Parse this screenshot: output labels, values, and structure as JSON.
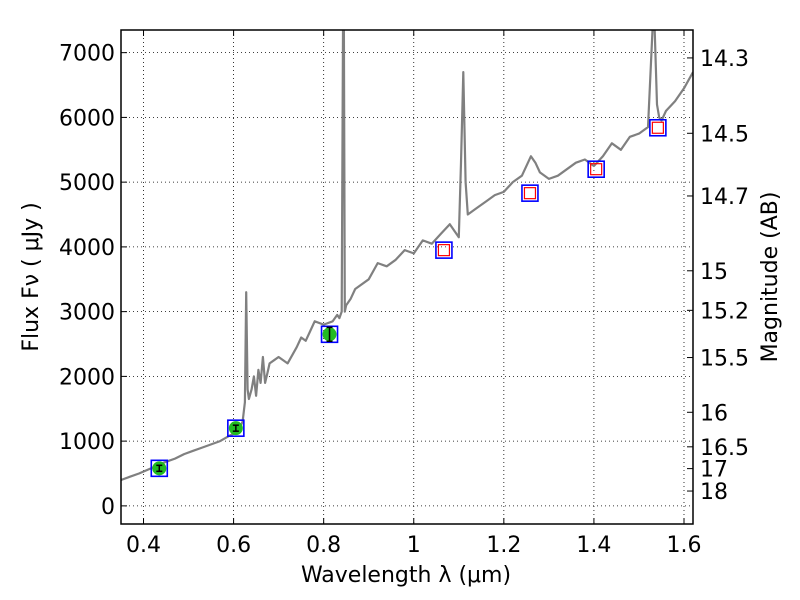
{
  "chart_data": {
    "type": "line",
    "title": "",
    "xlabel": "Wavelength  λ (μm)",
    "ylabel": "Flux  Fν  ( μJy )",
    "y2label": "Magnitude (AB)",
    "xlim": [
      0.35,
      1.62
    ],
    "ylim": [
      -280,
      7350
    ],
    "grid": true,
    "x_ticks": [
      0.4,
      0.6,
      0.8,
      1.0,
      1.2,
      1.4,
      1.6
    ],
    "x_tick_labels": [
      "0.4",
      "0.6",
      "0.8",
      "1",
      "1.2",
      "1.4",
      "1.6"
    ],
    "y_ticks": [
      0,
      1000,
      2000,
      3000,
      4000,
      5000,
      6000,
      7000
    ],
    "y_tick_labels": [
      "0",
      "1000",
      "2000",
      "3000",
      "4000",
      "5000",
      "6000",
      "7000"
    ],
    "mag_ticks": [
      14.3,
      14.5,
      14.7,
      15,
      15.2,
      15.5,
      16,
      16.5,
      17,
      18
    ],
    "mag_tick_labels": [
      "14.3",
      "14.5",
      "14.7",
      "15",
      "15.2",
      "15.5",
      "16",
      "16.5",
      "17",
      "18"
    ],
    "colors": {
      "spectrum": "#808080",
      "model_box": "#0000ff",
      "obs_point": "#22bb22",
      "nir_marker": "#ff0000"
    },
    "series": [
      {
        "name": "spectrum",
        "kind": "line",
        "x": [
          0.35,
          0.37,
          0.39,
          0.41,
          0.43,
          0.45,
          0.47,
          0.49,
          0.51,
          0.53,
          0.55,
          0.57,
          0.59,
          0.61,
          0.62,
          0.625,
          0.628,
          0.631,
          0.634,
          0.64,
          0.645,
          0.65,
          0.655,
          0.66,
          0.665,
          0.67,
          0.675,
          0.68,
          0.69,
          0.7,
          0.72,
          0.74,
          0.75,
          0.76,
          0.77,
          0.78,
          0.8,
          0.82,
          0.83,
          0.835,
          0.84,
          0.843,
          0.845,
          0.847,
          0.85,
          0.86,
          0.87,
          0.9,
          0.92,
          0.94,
          0.96,
          0.98,
          1.0,
          1.02,
          1.04,
          1.06,
          1.08,
          1.1,
          1.105,
          1.11,
          1.115,
          1.12,
          1.14,
          1.16,
          1.18,
          1.2,
          1.22,
          1.24,
          1.26,
          1.27,
          1.28,
          1.3,
          1.32,
          1.34,
          1.36,
          1.38,
          1.4,
          1.42,
          1.44,
          1.46,
          1.48,
          1.5,
          1.52,
          1.53,
          1.535,
          1.54,
          1.545,
          1.55,
          1.56,
          1.58,
          1.6,
          1.62
        ],
        "y": [
          400,
          450,
          500,
          560,
          620,
          680,
          730,
          800,
          850,
          900,
          950,
          1000,
          1080,
          1150,
          1300,
          1600,
          3300,
          1800,
          1650,
          1800,
          2000,
          1700,
          2100,
          1900,
          2300,
          1900,
          2050,
          2200,
          2250,
          2300,
          2200,
          2450,
          2600,
          2550,
          2700,
          2850,
          2800,
          2850,
          2950,
          2900,
          3000,
          7350,
          7350,
          3000,
          3100,
          3200,
          3350,
          3500,
          3750,
          3700,
          3800,
          3950,
          3900,
          4100,
          4050,
          4200,
          4350,
          4150,
          5300,
          6700,
          5000,
          4500,
          4600,
          4700,
          4800,
          4850,
          5000,
          5100,
          5400,
          5300,
          5150,
          5050,
          5100,
          5200,
          5300,
          5350,
          5250,
          5400,
          5600,
          5500,
          5700,
          5750,
          5850,
          7350,
          7350,
          6200,
          6000,
          5950,
          6100,
          6250,
          6450,
          6700
        ]
      },
      {
        "name": "model photometry",
        "kind": "marker",
        "x": [
          0.435,
          0.605,
          0.813,
          1.067,
          1.258,
          1.405,
          1.542
        ],
        "y": [
          580,
          1200,
          2650,
          3950,
          4830,
          5200,
          5840
        ]
      },
      {
        "name": "optical observed",
        "kind": "marker",
        "x": [
          0.435,
          0.605,
          0.813
        ],
        "y": [
          580,
          1200,
          2650
        ]
      },
      {
        "name": "near-IR observed",
        "kind": "marker",
        "x": [
          1.067,
          1.258,
          1.405,
          1.542
        ],
        "y": [
          3950,
          4830,
          5200,
          5840
        ]
      }
    ]
  }
}
